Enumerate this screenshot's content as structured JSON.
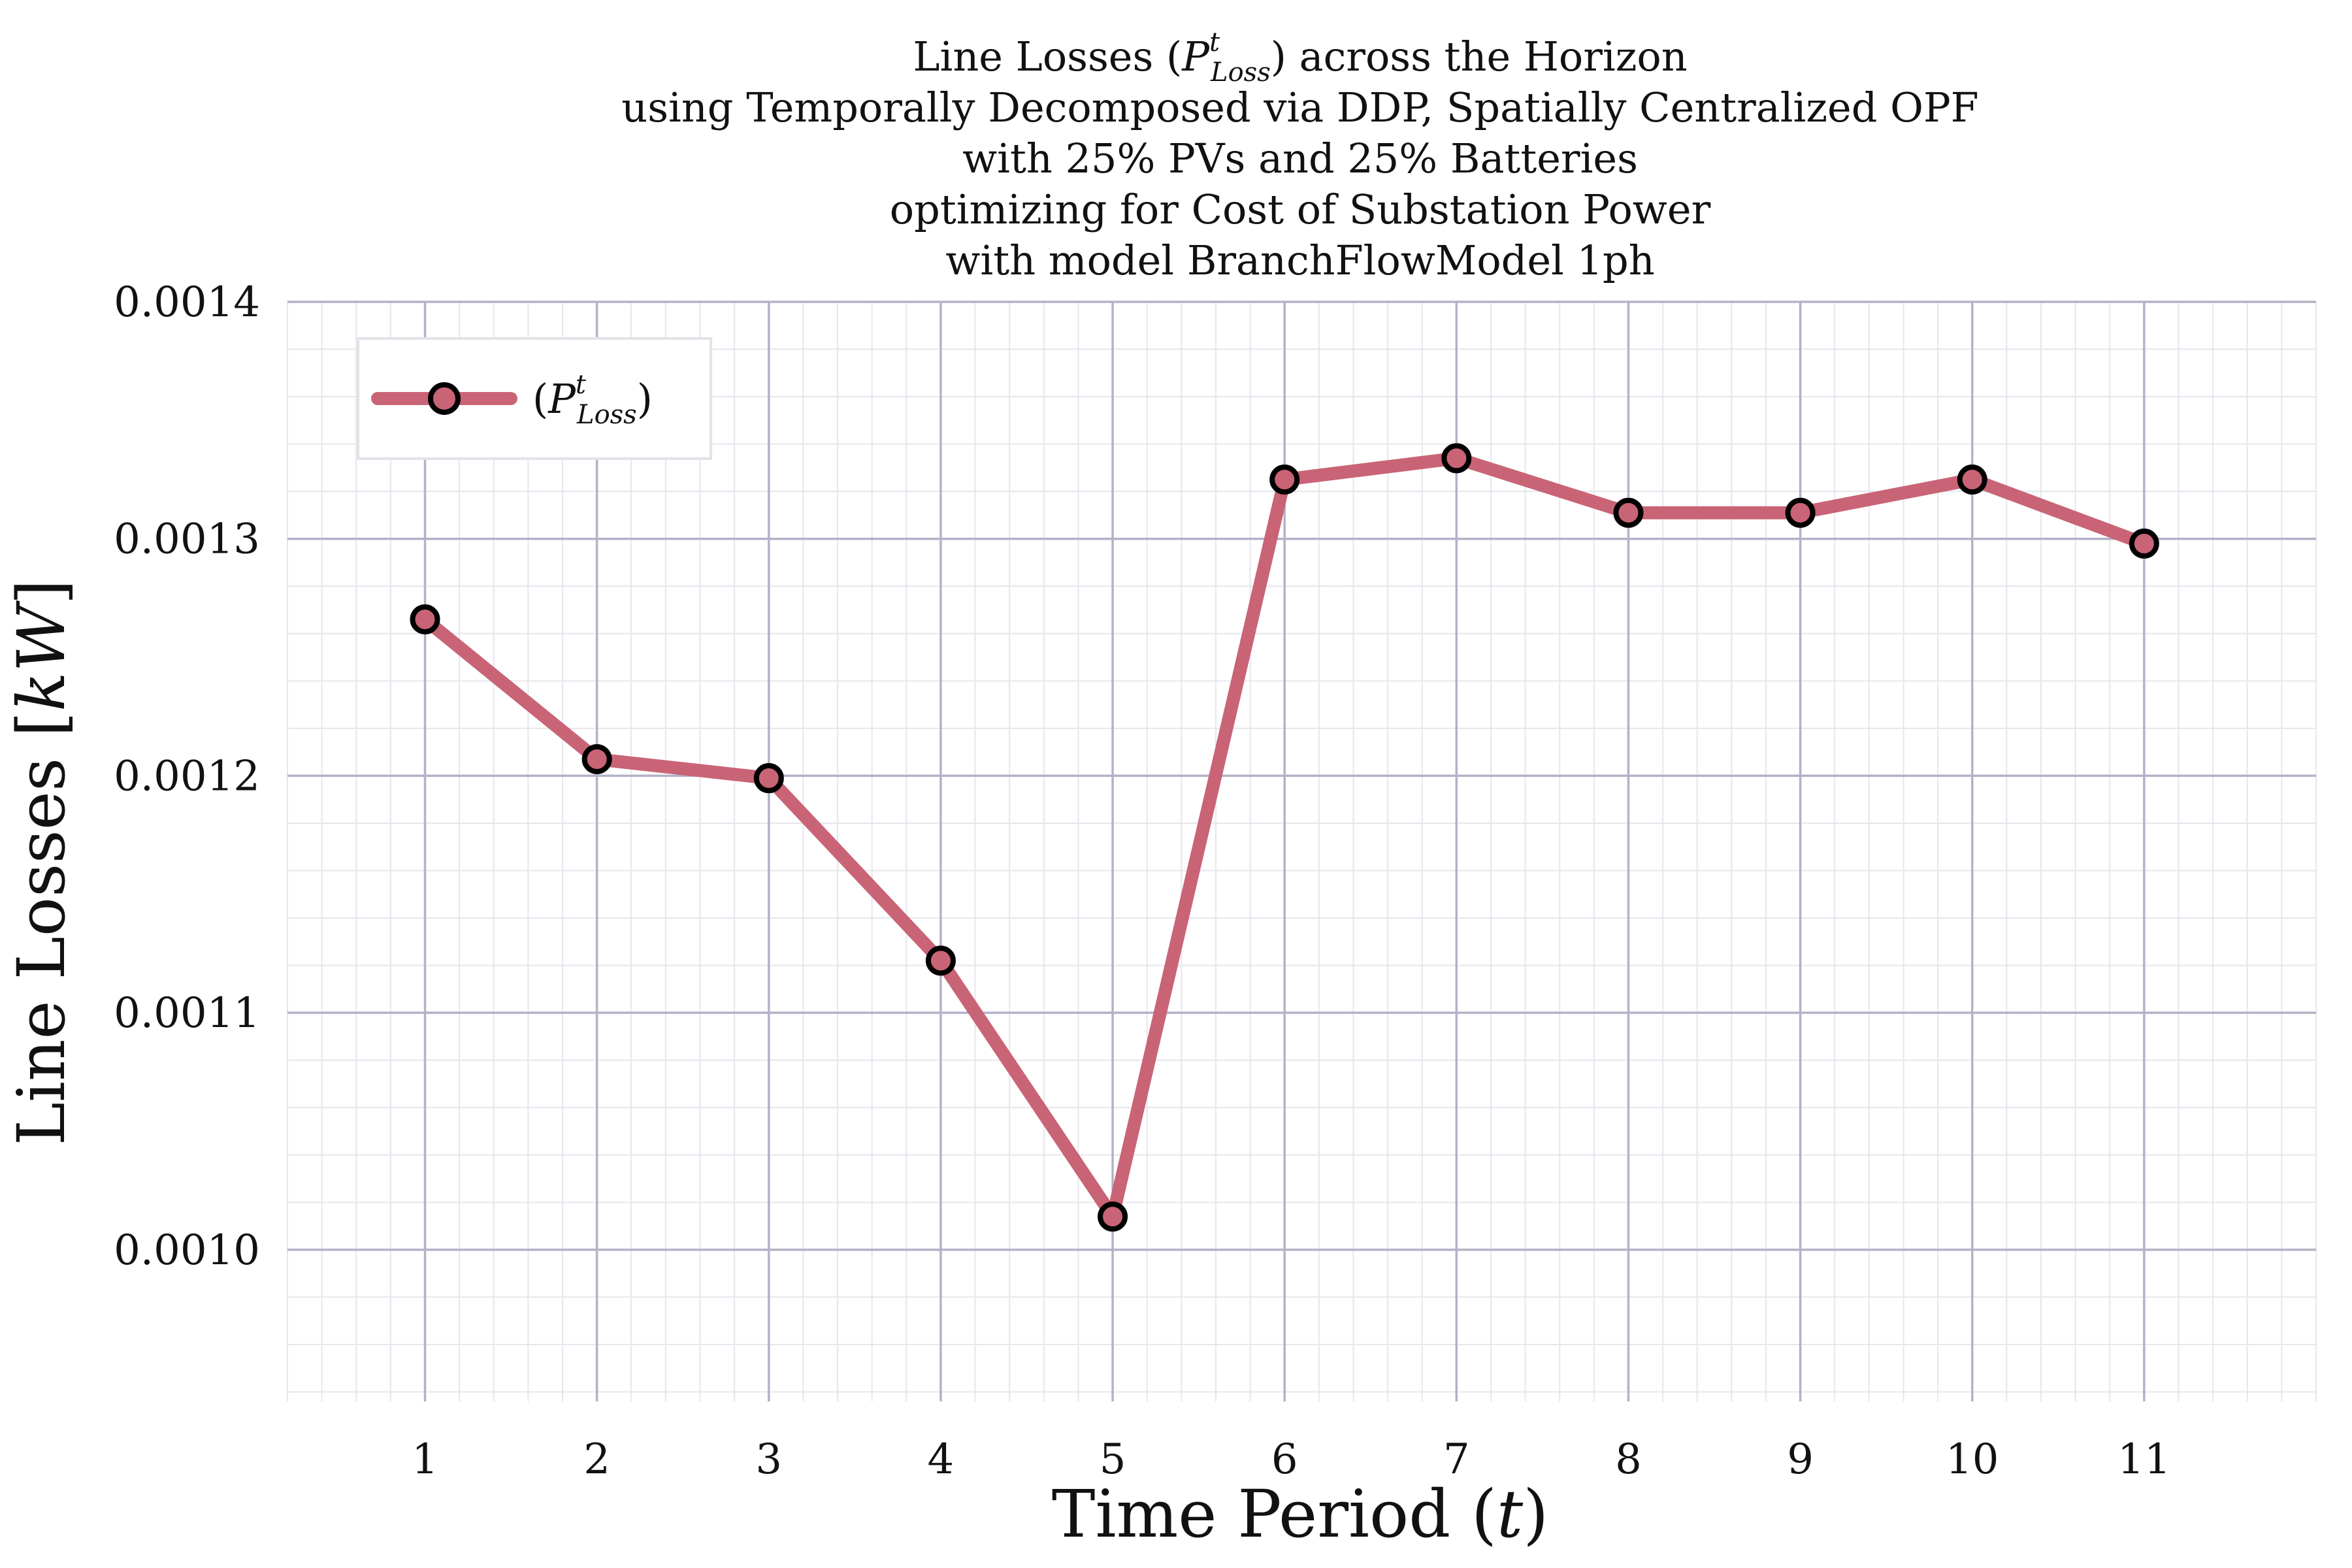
{
  "chart_data": {
    "type": "line",
    "title_lines": [
      {
        "pre": "Line Losses (",
        "sym": "P",
        "sup": "t",
        "sub": "Loss",
        "post": ") across the Horizon"
      },
      {
        "text": "using Temporally Decomposed via DDP, Spatially Centralized OPF"
      },
      {
        "text": "with 25% PVs and 25% Batteries"
      },
      {
        "text": "optimizing for Cost of Substation Power"
      },
      {
        "text": "with model BranchFlowModel 1ph"
      }
    ],
    "xlabel": {
      "text": "Time Period (",
      "sym": "t",
      "post": ")"
    },
    "ylabel": {
      "text": "Line Losses [",
      "sym": "kW",
      "post": "]"
    },
    "x": [
      1,
      2,
      3,
      4,
      5,
      6,
      7,
      8,
      9,
      10,
      11
    ],
    "xticks": [
      "1",
      "2",
      "3",
      "4",
      "5",
      "6",
      "7",
      "8",
      "9",
      "10",
      "11"
    ],
    "yticks": [
      0.001,
      0.0011,
      0.0012,
      0.0013,
      0.0014
    ],
    "ytick_labels": [
      "0.0010",
      "0.0011",
      "0.0012",
      "0.0013",
      "0.0014"
    ],
    "xlim": [
      0.2,
      12.0
    ],
    "ylim": [
      0.000936,
      0.0014
    ],
    "grid": true,
    "legend_position": "top-left",
    "series": [
      {
        "name": {
          "pre": "(",
          "sym": "P",
          "sup": "t",
          "sub": "Loss",
          "post": ")"
        },
        "color": "#c96476",
        "marker_edge": "#000000",
        "values": [
          0.001266,
          0.001207,
          0.001199,
          0.001122,
          0.001014,
          0.001325,
          0.001334,
          0.001311,
          0.001311,
          0.001325,
          0.001298
        ]
      }
    ]
  }
}
